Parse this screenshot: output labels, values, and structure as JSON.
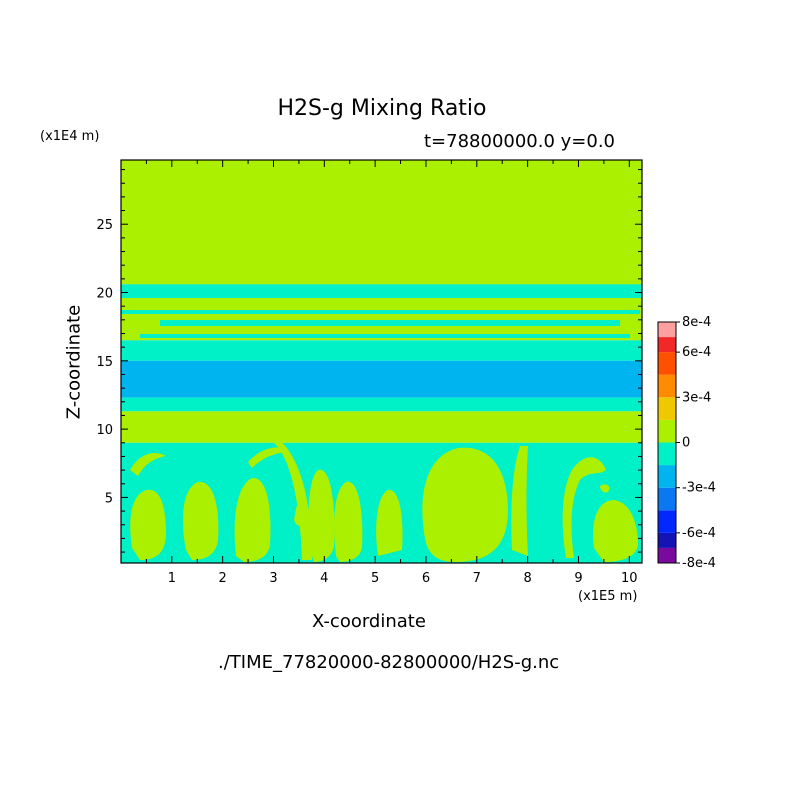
{
  "chart_data": {
    "type": "heatmap",
    "title": "H2S-g Mixing Ratio",
    "subtitle": "t=78800000.0 y=0.0",
    "xlabel": "X-coordinate",
    "ylabel": "Z-coordinate",
    "x_unit": "(x1E5 m)",
    "z_unit": "(x1E4 m)",
    "source_file": "./TIME_77820000-82800000/H2S-g.nc",
    "xlim": [
      0,
      10.25
    ],
    "ylim": [
      0.2,
      29.7
    ],
    "x_ticks": [
      1,
      2,
      3,
      4,
      5,
      6,
      7,
      8,
      9,
      10
    ],
    "y_ticks": [
      5,
      10,
      15,
      20,
      25
    ],
    "colorbar": {
      "levels": [
        -0.0008,
        -0.0007,
        -0.0006,
        -0.00045,
        -0.0003,
        -0.00015,
        0,
        0.00015,
        0.0003,
        0.00045,
        0.0006,
        0.0007,
        0.0008
      ],
      "colors": [
        "#7a0a9e",
        "#1414b4",
        "#0028ff",
        "#0a78f0",
        "#00b4f0",
        "#00f0c8",
        "#aaf000",
        "#f0c800",
        "#ff8c00",
        "#ff5000",
        "#f02828",
        "#ffa0a0"
      ],
      "labels": [
        "8e-4",
        "6e-4",
        "3e-4",
        "0",
        "-3e-4",
        "-6e-4",
        "-8e-4"
      ]
    },
    "bands": [
      {
        "z0": 20.6,
        "z1": 29.7,
        "value": "0",
        "color": "#aaf000"
      },
      {
        "z0": 19.6,
        "z1": 20.6,
        "value": "-1.5e-4 to 0",
        "color": "#00f0c8"
      },
      {
        "z0": 16.5,
        "z1": 19.6,
        "value": "0 (mixed)",
        "color": "#aaf000"
      },
      {
        "z0": 15.0,
        "z1": 16.5,
        "value": "-1.5e-4 to 0",
        "color": "#00f0c8"
      },
      {
        "z0": 12.3,
        "z1": 15.0,
        "value": "-3e-4 to -1.5e-4",
        "color": "#00b4f0"
      },
      {
        "z0": 11.3,
        "z1": 12.3,
        "value": "-1.5e-4 to 0",
        "color": "#00f0c8"
      },
      {
        "z0": 9.0,
        "z1": 11.3,
        "value": "0",
        "color": "#aaf000"
      },
      {
        "z0": 0.2,
        "z1": 9.0,
        "value": "-1.5e-4 to 0 with 0 plumes",
        "color": "#00f0c8"
      }
    ]
  }
}
